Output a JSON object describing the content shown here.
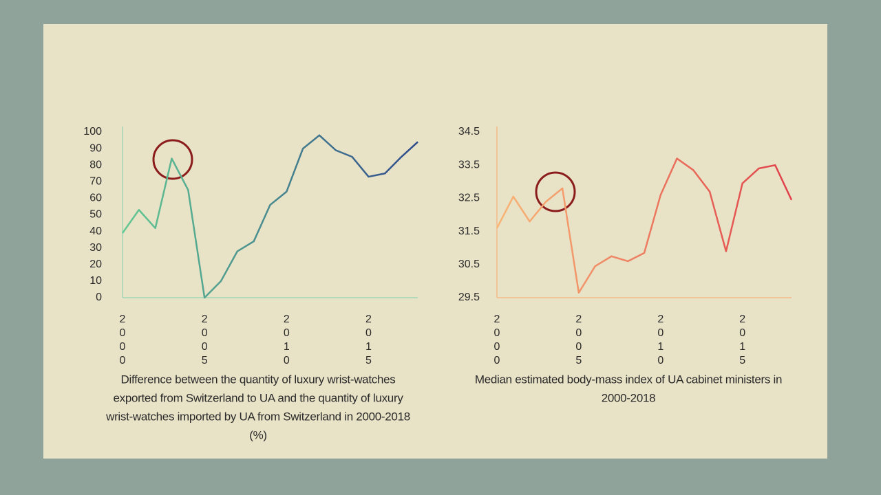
{
  "chart_data": [
    {
      "type": "line",
      "title": [
        "Difference between the quantity of luxury wrist-watches",
        "exported from Switzerland to UA and the quantity of luxury",
        "wrist-watches imported by UA from Switzerland in 2000-2018",
        "(%)"
      ],
      "x": [
        2000,
        2001,
        2002,
        2003,
        2004,
        2005,
        2006,
        2007,
        2008,
        2009,
        2010,
        2011,
        2012,
        2013,
        2014,
        2015,
        2016,
        2017,
        2018
      ],
      "series": [
        {
          "color": [
            "#62c992",
            "#2e4a8c"
          ],
          "values": [
            39,
            53,
            42,
            84,
            65,
            0,
            10,
            28,
            34,
            56,
            64,
            90,
            98,
            89,
            85,
            73,
            75,
            85,
            94
          ]
        }
      ],
      "xlim": [
        2000,
        2018
      ],
      "xticks": [
        2000,
        2005,
        2010,
        2015
      ],
      "ylim": [
        0,
        100
      ],
      "yticks": [
        0,
        10,
        20,
        30,
        40,
        50,
        60,
        70,
        80,
        90,
        100
      ],
      "axis_color": "#9fd8b4"
    },
    {
      "type": "line",
      "title": [
        "Median estimated body-mass index of UA cabinet ministers in",
        "2000-2018"
      ],
      "x": [
        2000,
        2001,
        2002,
        2003,
        2004,
        2005,
        2006,
        2007,
        2008,
        2009,
        2010,
        2011,
        2012,
        2013,
        2014,
        2015,
        2016,
        2017,
        2018
      ],
      "series": [
        {
          "color": [
            "#f9b676",
            "#e0404a"
          ],
          "values": [
            31.6,
            32.55,
            31.8,
            32.4,
            32.8,
            29.65,
            30.45,
            30.75,
            30.6,
            30.85,
            32.6,
            33.7,
            33.35,
            32.7,
            30.9,
            32.95,
            33.4,
            33.5,
            32.45
          ]
        }
      ],
      "xlim": [
        2000,
        2018
      ],
      "xticks": [
        2000,
        2005,
        2010,
        2015
      ],
      "ylim": [
        29.5,
        34.5
      ],
      "yticks": [
        29.5,
        30.5,
        31.5,
        32.5,
        33.5,
        34.5
      ],
      "axis_color": "#f6b98a"
    }
  ]
}
